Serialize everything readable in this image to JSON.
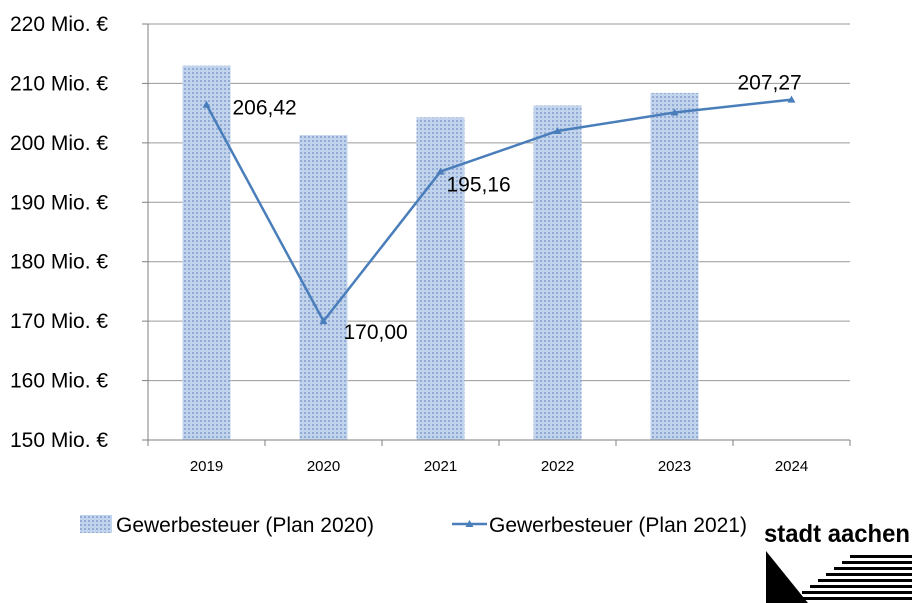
{
  "chart_data": {
    "type": "bar",
    "categories": [
      "2019",
      "2020",
      "2021",
      "2022",
      "2023",
      "2024"
    ],
    "series": [
      {
        "name": "Gewerbesteuer (Plan 2020)",
        "kind": "bar",
        "values": [
          213,
          201.3,
          204.3,
          206.3,
          208.4,
          null
        ]
      },
      {
        "name": "Gewerbesteuer (Plan 2021)",
        "kind": "line",
        "values": [
          206.42,
          170.0,
          195.16,
          202.0,
          205.1,
          207.27
        ],
        "data_labels": [
          "206,42",
          "170,00",
          "195,16",
          "",
          "",
          "207,27"
        ]
      }
    ],
    "ylim": [
      150,
      220
    ],
    "yticks": [
      150,
      160,
      170,
      180,
      190,
      200,
      210,
      220
    ],
    "ytick_labels": [
      "150  Mio. €",
      "160  Mio. €",
      "170  Mio. €",
      "180  Mio. €",
      "190  Mio. €",
      "200  Mio. €",
      "210  Mio. €",
      "220  Mio. €"
    ],
    "grid": true,
    "legend_position": "bottom",
    "colors": {
      "bar": "#b8cbe6",
      "bar_dot": "#8fa8d2",
      "line": "#4a7ebb",
      "grid": "#9a9a9a",
      "axis": "#7f7f7f"
    }
  },
  "logo": {
    "text": "stadt aachen"
  }
}
